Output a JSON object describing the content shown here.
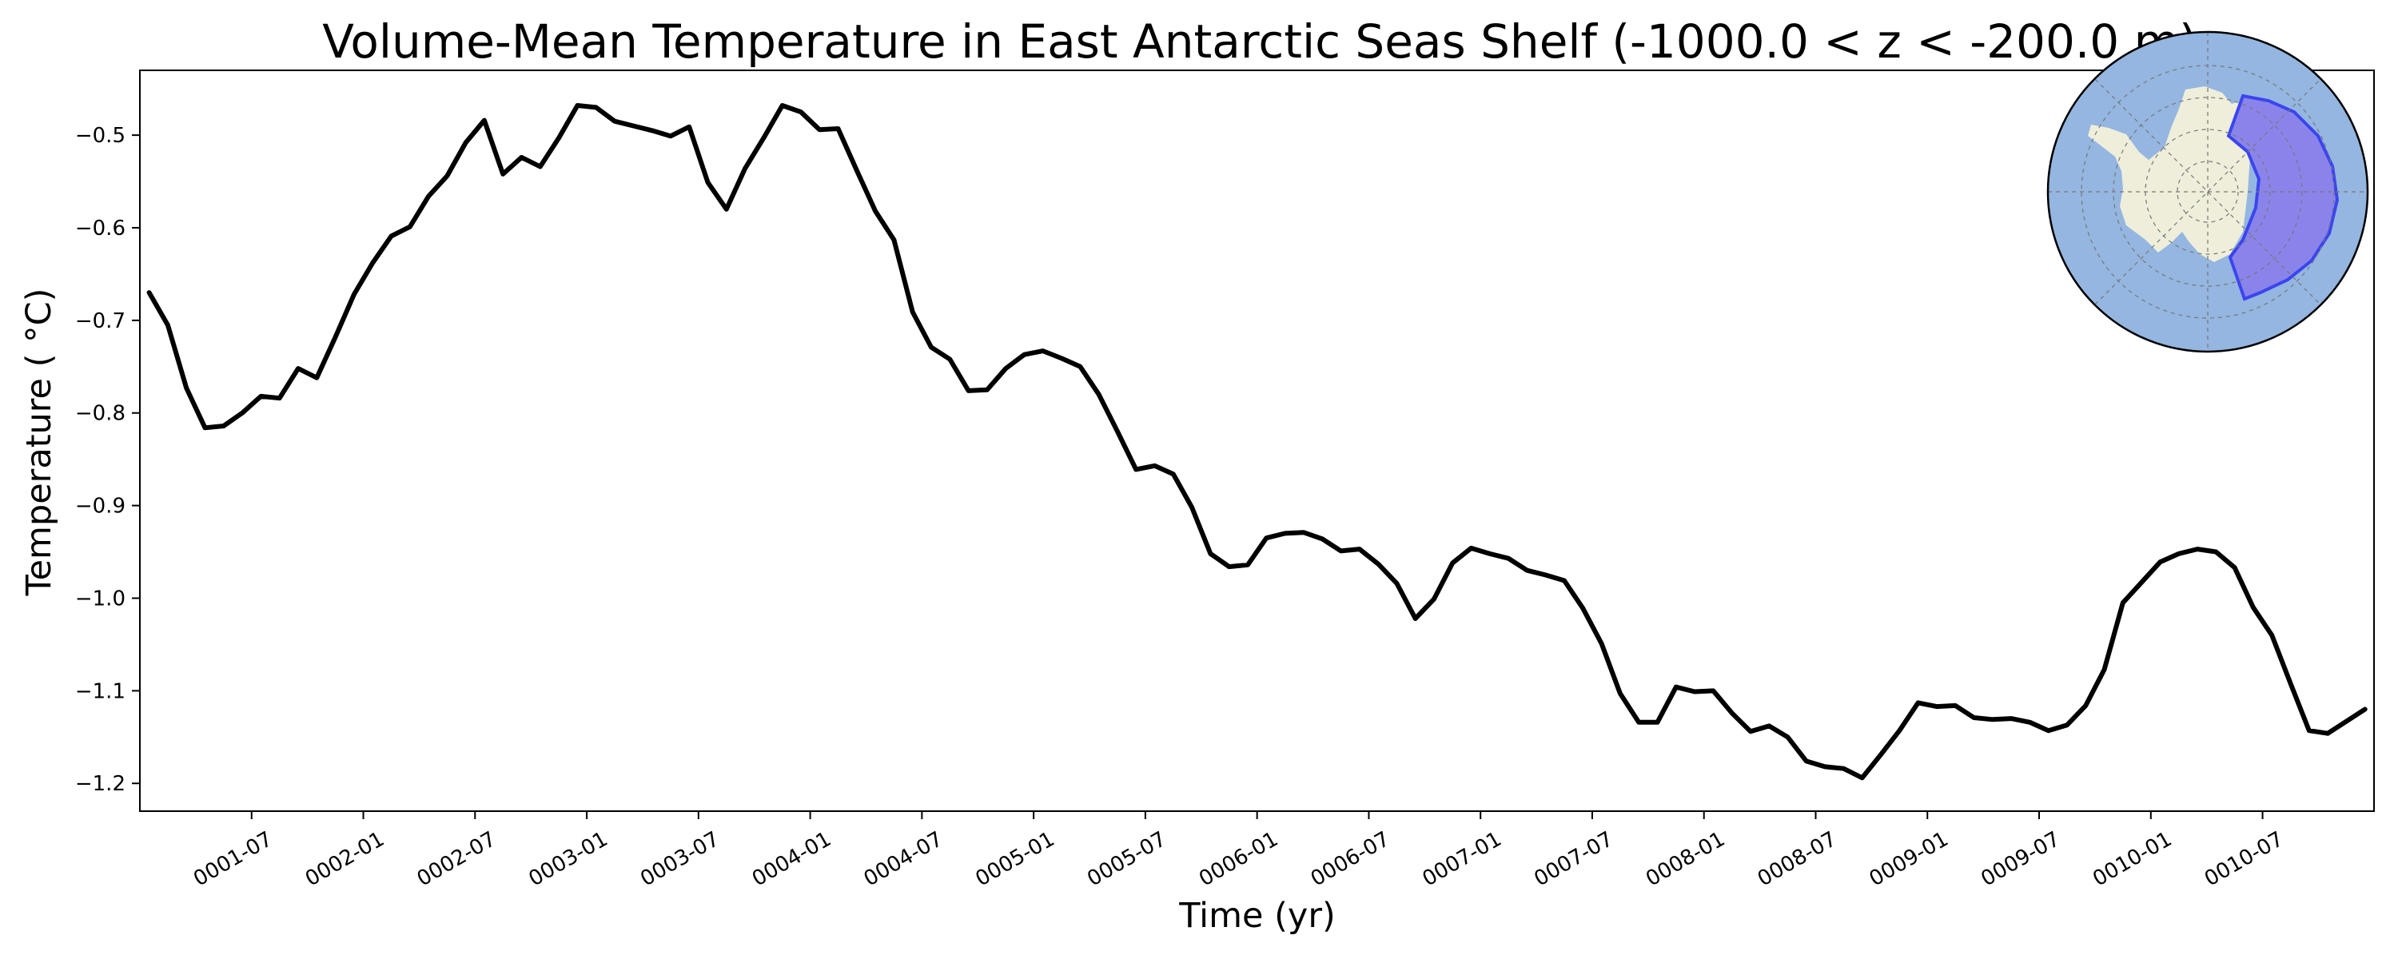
{
  "chart_data": {
    "type": "line",
    "title": "Volume-Mean Temperature in East Antarctic Seas Shelf (-1000.0 < z < -200.0 m)",
    "xlabel": "Time (yr)",
    "ylabel": "Temperature ( °C)",
    "xlim": [
      "0001-01-01",
      "0010-12-31"
    ],
    "ylim": [
      -1.23,
      -0.43
    ],
    "x_tick_labels": [
      "0001-07",
      "0002-01",
      "0002-07",
      "0003-01",
      "0003-07",
      "0004-01",
      "0004-07",
      "0005-01",
      "0005-07",
      "0006-01",
      "0006-07",
      "0007-01",
      "0007-07",
      "0008-01",
      "0008-07",
      "0009-01",
      "0009-07",
      "0010-01",
      "0010-07"
    ],
    "y_ticks": [
      -0.5,
      -0.6,
      -0.7,
      -0.8,
      -0.9,
      -1.0,
      -1.1,
      -1.2
    ],
    "y_tick_labels": [
      "−0.5",
      "−0.6",
      "−0.7",
      "−0.8",
      "−0.9",
      "−1.0",
      "−1.1",
      "−1.2"
    ],
    "grid": false,
    "line_color": "#000000",
    "series": [
      {
        "x": [
          "0001-01",
          "0001-02",
          "0001-03",
          "0001-04",
          "0001-05",
          "0001-06",
          "0001-07",
          "0001-08",
          "0001-09",
          "0001-10",
          "0001-11",
          "0001-12",
          "0002-01",
          "0002-02",
          "0002-03",
          "0002-04",
          "0002-05",
          "0002-06",
          "0002-07",
          "0002-08",
          "0002-09",
          "0002-10",
          "0002-11",
          "0002-12",
          "0003-01",
          "0003-02",
          "0003-03",
          "0003-04",
          "0003-05",
          "0003-06",
          "0003-07",
          "0003-08",
          "0003-09",
          "0003-10",
          "0003-11",
          "0003-12",
          "0004-01",
          "0004-02",
          "0004-03",
          "0004-04",
          "0004-05",
          "0004-06",
          "0004-07",
          "0004-08",
          "0004-09",
          "0004-10",
          "0004-11",
          "0004-12",
          "0005-01",
          "0005-02",
          "0005-03",
          "0005-04",
          "0005-05",
          "0005-06",
          "0005-07",
          "0005-08",
          "0005-09",
          "0005-10",
          "0005-11",
          "0005-12",
          "0006-01",
          "0006-02",
          "0006-03",
          "0006-04",
          "0006-05",
          "0006-06",
          "0006-07",
          "0006-08",
          "0006-09",
          "0006-10",
          "0006-11",
          "0006-12",
          "0007-01",
          "0007-02",
          "0007-03",
          "0007-04",
          "0007-05",
          "0007-06",
          "0007-07",
          "0007-08",
          "0007-09",
          "0007-10",
          "0007-11",
          "0007-12",
          "0008-01",
          "0008-02",
          "0008-03",
          "0008-04",
          "0008-05",
          "0008-06",
          "0008-07",
          "0008-08",
          "0008-09",
          "0008-10",
          "0008-11",
          "0008-12",
          "0009-01",
          "0009-02",
          "0009-03",
          "0009-04",
          "0009-05",
          "0009-06",
          "0009-07",
          "0009-08",
          "0009-09",
          "0009-10",
          "0009-11",
          "0009-12",
          "0010-01",
          "0010-02",
          "0010-03",
          "0010-04",
          "0010-05",
          "0010-06",
          "0010-07",
          "0010-08",
          "0010-09",
          "0010-10",
          "0010-11",
          "0010-12"
        ],
        "y": [
          -0.67,
          -0.705,
          -0.773,
          -0.816,
          -0.814,
          -0.8,
          -0.782,
          -0.784,
          -0.752,
          -0.762,
          -0.718,
          -0.672,
          -0.638,
          -0.609,
          -0.599,
          -0.566,
          -0.544,
          -0.508,
          -0.484,
          -0.542,
          -0.524,
          -0.534,
          -0.503,
          -0.468,
          -0.47,
          -0.485,
          -0.49,
          -0.495,
          -0.501,
          -0.491,
          -0.551,
          -0.58,
          -0.536,
          -0.503,
          -0.468,
          -0.475,
          -0.494,
          -0.493,
          -0.538,
          -0.582,
          -0.613,
          -0.691,
          -0.729,
          -0.742,
          -0.776,
          -0.775,
          -0.752,
          -0.737,
          -0.733,
          -0.741,
          -0.75,
          -0.78,
          -0.82,
          -0.861,
          -0.857,
          -0.866,
          -0.902,
          -0.952,
          -0.966,
          -0.964,
          -0.935,
          -0.93,
          -0.929,
          -0.936,
          -0.949,
          -0.947,
          -0.963,
          -0.984,
          -1.022,
          -1.001,
          -0.962,
          -0.946,
          -0.952,
          -0.957,
          -0.97,
          -0.975,
          -0.981,
          -1.011,
          -1.049,
          -1.103,
          -1.134,
          -1.134,
          -1.096,
          -1.101,
          -1.1,
          -1.124,
          -1.144,
          -1.138,
          -1.15,
          -1.176,
          -1.182,
          -1.184,
          -1.194,
          -1.169,
          -1.143,
          -1.113,
          -1.117,
          -1.116,
          -1.129,
          -1.131,
          -1.13,
          -1.134,
          -1.143,
          -1.137,
          -1.116,
          -1.077,
          -1.005,
          -0.983,
          -0.961,
          -0.952,
          -0.947,
          -0.95,
          -0.967,
          -1.01,
          -1.04,
          -1.092,
          -1.143,
          -1.146,
          -1.133,
          -1.12
        ]
      }
    ]
  },
  "inset_map": {
    "ocean_color": "#94b6e0",
    "land_color": "#eeeedb",
    "region_fill": "#8a84ea",
    "region_edge": "#3b45ee",
    "grid_color": "#777777"
  }
}
